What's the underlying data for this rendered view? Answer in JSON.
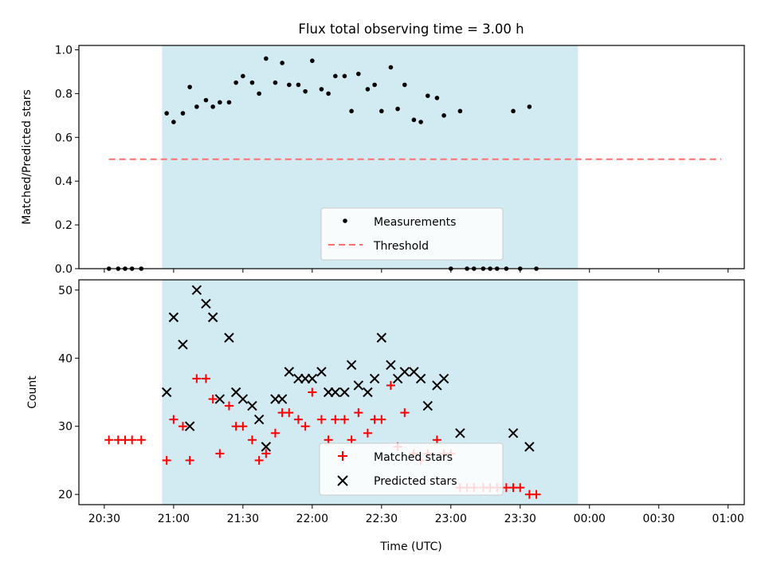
{
  "title": "Flux total observing time = 3.00 h",
  "colors": {
    "band": "#add8e6",
    "threshold": "#ff6f6f",
    "matched": "#ff0000",
    "predicted": "#000000",
    "measure": "#000000"
  },
  "chart_data": [
    {
      "type": "scatter",
      "ylabel": "Matched/Predicted stars",
      "ylim": [
        0,
        1.02
      ],
      "xlim": [
        "20:19",
        "01:07"
      ],
      "yticks": [
        "0.0",
        "0.2",
        "0.4",
        "0.6",
        "0.8",
        "1.0"
      ],
      "grid": false,
      "legend_position": "lower-center",
      "shaded_region": {
        "x_start": "20:55",
        "x_end": "23:55"
      },
      "threshold": {
        "name": "Threshold",
        "value": 0.5,
        "x_start": "20:32",
        "x_end": "00:57"
      },
      "series": [
        {
          "name": "Measurements",
          "points": [
            [
              "20:32",
              0.0
            ],
            [
              "20:36",
              0.0
            ],
            [
              "20:39",
              0.0
            ],
            [
              "20:42",
              0.0
            ],
            [
              "20:46",
              0.0
            ],
            [
              "20:57",
              0.71
            ],
            [
              "21:00",
              0.67
            ],
            [
              "21:04",
              0.71
            ],
            [
              "21:07",
              0.83
            ],
            [
              "21:10",
              0.74
            ],
            [
              "21:14",
              0.77
            ],
            [
              "21:17",
              0.74
            ],
            [
              "21:20",
              0.76
            ],
            [
              "21:24",
              0.76
            ],
            [
              "21:27",
              0.85
            ],
            [
              "21:30",
              0.88
            ],
            [
              "21:34",
              0.85
            ],
            [
              "21:37",
              0.8
            ],
            [
              "21:40",
              0.96
            ],
            [
              "21:44",
              0.85
            ],
            [
              "21:47",
              0.94
            ],
            [
              "21:50",
              0.84
            ],
            [
              "21:54",
              0.84
            ],
            [
              "21:57",
              0.81
            ],
            [
              "22:00",
              0.95
            ],
            [
              "22:04",
              0.82
            ],
            [
              "22:07",
              0.8
            ],
            [
              "22:10",
              0.88
            ],
            [
              "22:14",
              0.88
            ],
            [
              "22:17",
              0.72
            ],
            [
              "22:20",
              0.89
            ],
            [
              "22:24",
              0.82
            ],
            [
              "22:27",
              0.84
            ],
            [
              "22:30",
              0.72
            ],
            [
              "22:34",
              0.92
            ],
            [
              "22:37",
              0.73
            ],
            [
              "22:40",
              0.84
            ],
            [
              "22:44",
              0.68
            ],
            [
              "22:47",
              0.67
            ],
            [
              "22:50",
              0.79
            ],
            [
              "22:54",
              0.78
            ],
            [
              "22:57",
              0.7
            ],
            [
              "23:00",
              0.0
            ],
            [
              "23:04",
              0.72
            ],
            [
              "23:07",
              0.0
            ],
            [
              "23:10",
              0.0
            ],
            [
              "23:14",
              0.0
            ],
            [
              "23:17",
              0.0
            ],
            [
              "23:20",
              0.0
            ],
            [
              "23:24",
              0.0
            ],
            [
              "23:27",
              0.72
            ],
            [
              "23:30",
              0.0
            ],
            [
              "23:34",
              0.74
            ],
            [
              "23:37",
              0.0
            ]
          ]
        }
      ]
    },
    {
      "type": "scatter",
      "xlabel": "Time (UTC)",
      "ylabel": "Count",
      "ylim": [
        18.5,
        51.5
      ],
      "xlim": [
        "20:19",
        "01:07"
      ],
      "xticks": [
        "20:30",
        "21:00",
        "21:30",
        "22:00",
        "22:30",
        "23:00",
        "23:30",
        "00:00",
        "00:30",
        "01:00"
      ],
      "yticks": [
        "20",
        "30",
        "40",
        "50"
      ],
      "grid": false,
      "legend_position": "lower-center",
      "shaded_region": {
        "x_start": "20:55",
        "x_end": "23:55"
      },
      "series": [
        {
          "name": "Matched stars",
          "points": [
            [
              "20:32",
              28
            ],
            [
              "20:36",
              28
            ],
            [
              "20:39",
              28
            ],
            [
              "20:42",
              28
            ],
            [
              "20:46",
              28
            ],
            [
              "20:57",
              25
            ],
            [
              "21:00",
              31
            ],
            [
              "21:04",
              30
            ],
            [
              "21:07",
              25
            ],
            [
              "21:10",
              37
            ],
            [
              "21:14",
              37
            ],
            [
              "21:17",
              34
            ],
            [
              "21:20",
              26
            ],
            [
              "21:24",
              33
            ],
            [
              "21:27",
              30
            ],
            [
              "21:30",
              30
            ],
            [
              "21:34",
              28
            ],
            [
              "21:37",
              25
            ],
            [
              "21:40",
              26
            ],
            [
              "21:44",
              29
            ],
            [
              "21:47",
              32
            ],
            [
              "21:50",
              32
            ],
            [
              "21:54",
              31
            ],
            [
              "21:57",
              30
            ],
            [
              "22:00",
              35
            ],
            [
              "22:04",
              31
            ],
            [
              "22:07",
              28
            ],
            [
              "22:10",
              31
            ],
            [
              "22:14",
              31
            ],
            [
              "22:17",
              28
            ],
            [
              "22:20",
              32
            ],
            [
              "22:24",
              29
            ],
            [
              "22:27",
              31
            ],
            [
              "22:30",
              31
            ],
            [
              "22:34",
              36
            ],
            [
              "22:37",
              27
            ],
            [
              "22:40",
              32
            ],
            [
              "22:44",
              26
            ],
            [
              "22:47",
              25
            ],
            [
              "22:50",
              26
            ],
            [
              "22:54",
              28
            ],
            [
              "22:57",
              26
            ],
            [
              "23:00",
              26
            ],
            [
              "23:04",
              21
            ],
            [
              "23:07",
              21
            ],
            [
              "23:10",
              21
            ],
            [
              "23:14",
              21
            ],
            [
              "23:17",
              21
            ],
            [
              "23:20",
              21
            ],
            [
              "23:24",
              21
            ],
            [
              "23:27",
              21
            ],
            [
              "23:30",
              21
            ],
            [
              "23:34",
              20
            ],
            [
              "23:37",
              20
            ]
          ]
        },
        {
          "name": "Predicted stars",
          "points": [
            [
              "20:57",
              35
            ],
            [
              "21:00",
              46
            ],
            [
              "21:04",
              42
            ],
            [
              "21:07",
              30
            ],
            [
              "21:10",
              50
            ],
            [
              "21:14",
              48
            ],
            [
              "21:17",
              46
            ],
            [
              "21:20",
              34
            ],
            [
              "21:24",
              43
            ],
            [
              "21:27",
              35
            ],
            [
              "21:30",
              34
            ],
            [
              "21:34",
              33
            ],
            [
              "21:37",
              31
            ],
            [
              "21:40",
              27
            ],
            [
              "21:44",
              34
            ],
            [
              "21:47",
              34
            ],
            [
              "21:50",
              38
            ],
            [
              "21:54",
              37
            ],
            [
              "21:57",
              37
            ],
            [
              "22:00",
              37
            ],
            [
              "22:04",
              38
            ],
            [
              "22:07",
              35
            ],
            [
              "22:10",
              35
            ],
            [
              "22:14",
              35
            ],
            [
              "22:17",
              39
            ],
            [
              "22:20",
              36
            ],
            [
              "22:24",
              35
            ],
            [
              "22:27",
              37
            ],
            [
              "22:30",
              43
            ],
            [
              "22:34",
              39
            ],
            [
              "22:37",
              37
            ],
            [
              "22:40",
              38
            ],
            [
              "22:44",
              38
            ],
            [
              "22:47",
              37
            ],
            [
              "22:50",
              33
            ],
            [
              "22:54",
              36
            ],
            [
              "22:57",
              37
            ],
            [
              "23:04",
              29
            ],
            [
              "23:27",
              29
            ],
            [
              "23:34",
              27
            ]
          ]
        }
      ]
    }
  ]
}
